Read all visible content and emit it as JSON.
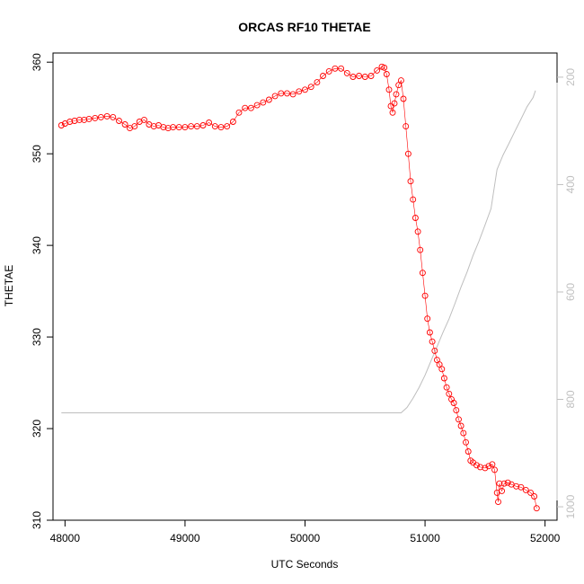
{
  "chart_data": {
    "type": "scatter",
    "title": "ORCAS RF10 THETAE",
    "xlabel": "UTC Seconds",
    "ylabel": "THETAE",
    "xlim": [
      47900,
      52100
    ],
    "ylim": [
      310,
      361
    ],
    "x_ticks": [
      48000,
      49000,
      50000,
      51000,
      52000
    ],
    "y_ticks": [
      310,
      320,
      330,
      340,
      350,
      360
    ],
    "secondary_axis": {
      "side": "right",
      "reversed": true,
      "lim": [
        1025,
        155
      ],
      "ticks": [
        200,
        400,
        600,
        800,
        1000
      ]
    },
    "colors": {
      "points": "#ff0000",
      "secondary_line": "#bebebe",
      "right_axis": "#c0c0c0"
    },
    "series": [
      {
        "marker": "open-circle",
        "x": [
          47970,
          48000,
          48040,
          48080,
          48120,
          48160,
          48200,
          48250,
          48300,
          48350,
          48400,
          48450,
          48500,
          48540,
          48580,
          48620,
          48660,
          48700,
          48740,
          48780,
          48820,
          48860,
          48900,
          48950,
          49000,
          49050,
          49100,
          49150,
          49200,
          49250,
          49300,
          49350,
          49400,
          49450,
          49500,
          49550,
          49600,
          49650,
          49700,
          49750,
          49800,
          49850,
          49900,
          49950,
          50000,
          50050,
          50100,
          50150,
          50200,
          50250,
          50300,
          50350,
          50400,
          50450,
          50500,
          50550,
          50600,
          50640,
          50660,
          50680,
          50700,
          50715,
          50730,
          50745,
          50760,
          50780,
          50800,
          50820,
          50840,
          50860,
          50880,
          50900,
          50920,
          50940,
          50960,
          50980,
          51000,
          51020,
          51040,
          51060,
          51080,
          51100,
          51120,
          51140,
          51160,
          51180,
          51200,
          51220,
          51240,
          51260,
          51280,
          51300,
          51320,
          51340,
          51360,
          51380,
          51400,
          51430,
          51460,
          51500,
          51530,
          51560,
          51580,
          51600,
          51610,
          51620,
          51640,
          51660,
          51690,
          51720,
          51760,
          51800,
          51840,
          51880,
          51910,
          51930
        ],
        "y": [
          353.1,
          353.3,
          353.5,
          353.6,
          353.7,
          353.7,
          353.8,
          353.9,
          354.0,
          354.1,
          354.0,
          353.6,
          353.2,
          352.8,
          353.0,
          353.5,
          353.7,
          353.2,
          353.0,
          353.1,
          352.9,
          352.8,
          352.9,
          352.9,
          352.9,
          353.0,
          353.0,
          353.1,
          353.4,
          353.0,
          352.9,
          353.0,
          353.5,
          354.5,
          355.0,
          355.0,
          355.3,
          355.6,
          355.9,
          356.3,
          356.6,
          356.6,
          356.5,
          356.8,
          357.0,
          357.3,
          357.8,
          358.5,
          359.0,
          359.3,
          359.3,
          358.8,
          358.4,
          358.5,
          358.4,
          358.5,
          359.1,
          359.5,
          359.4,
          358.7,
          357.0,
          355.2,
          354.5,
          355.5,
          356.5,
          357.5,
          358.0,
          356.0,
          353.0,
          350.0,
          347.0,
          345.0,
          343.0,
          341.5,
          339.5,
          337.0,
          334.5,
          332.0,
          330.5,
          329.5,
          328.5,
          327.5,
          327.0,
          326.5,
          325.5,
          324.5,
          323.8,
          323.2,
          322.8,
          322.0,
          321.0,
          320.3,
          319.5,
          318.5,
          317.5,
          316.5,
          316.3,
          316.0,
          315.8,
          315.7,
          315.9,
          316.1,
          315.5,
          313.0,
          312.0,
          314.0,
          313.2,
          314.0,
          314.1,
          313.9,
          313.7,
          313.6,
          313.3,
          313.0,
          312.6,
          311.3
        ]
      },
      {
        "axis": "secondary",
        "x": [
          47970,
          48500,
          49000,
          49500,
          50000,
          50500,
          50800,
          50850,
          50900,
          50950,
          51000,
          51050,
          51100,
          51150,
          51200,
          51250,
          51300,
          51350,
          51400,
          51450,
          51500,
          51550,
          51600,
          51650,
          51700,
          51750,
          51800,
          51850,
          51900,
          51920
        ],
        "y": [
          825,
          825,
          825,
          825,
          825,
          825,
          825,
          815,
          798,
          778,
          755,
          728,
          702,
          675,
          650,
          621,
          591,
          563,
          532,
          505,
          475,
          445,
          372,
          345,
          323,
          300,
          278,
          255,
          238,
          225
        ]
      }
    ]
  }
}
